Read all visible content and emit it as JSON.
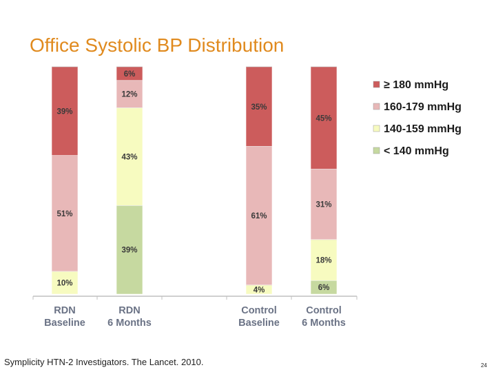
{
  "slide": {
    "title": "Office Systolic BP Distribution",
    "citation": "Symplicity HTN-2 Investigators.  The Lancet. 2010.",
    "page_number": "24"
  },
  "chart_data": {
    "type": "bar",
    "stacked": true,
    "title": "Office Systolic BP Distribution",
    "xlabel": "",
    "ylabel": "",
    "ylim": [
      0,
      100
    ],
    "grid": false,
    "legend_position": "top-right",
    "categories": [
      [
        "RDN",
        "Baseline"
      ],
      [
        "RDN",
        "6 Months"
      ],
      [
        "Control",
        "Baseline"
      ],
      [
        "Control",
        "6 Months"
      ]
    ],
    "series": [
      {
        "name": "< 140 mmHg",
        "color": "#c6d9a0",
        "values": [
          0,
          39,
          0,
          6
        ],
        "labels": [
          "",
          "39%",
          "",
          "6%"
        ]
      },
      {
        "name": "140-159 mmHg",
        "color": "#f7fbc0",
        "values": [
          10,
          43,
          4,
          18
        ],
        "labels": [
          "10%",
          "43%",
          "4%",
          "18%"
        ]
      },
      {
        "name": "160-179 mmHg",
        "color": "#e8b8b8",
        "values": [
          51,
          12,
          61,
          31
        ],
        "labels": [
          "51%",
          "12%",
          "61%",
          "31%"
        ]
      },
      {
        "name": "≥ 180 mmHg",
        "color": "#cc5c5c",
        "values": [
          39,
          6,
          35,
          45
        ],
        "labels": [
          "39%",
          "6%",
          "35%",
          "45%"
        ]
      }
    ],
    "legend_order": [
      "≥ 180 mmHg",
      "160-179 mmHg",
      "140-159 mmHg",
      "< 140 mmHg"
    ]
  }
}
